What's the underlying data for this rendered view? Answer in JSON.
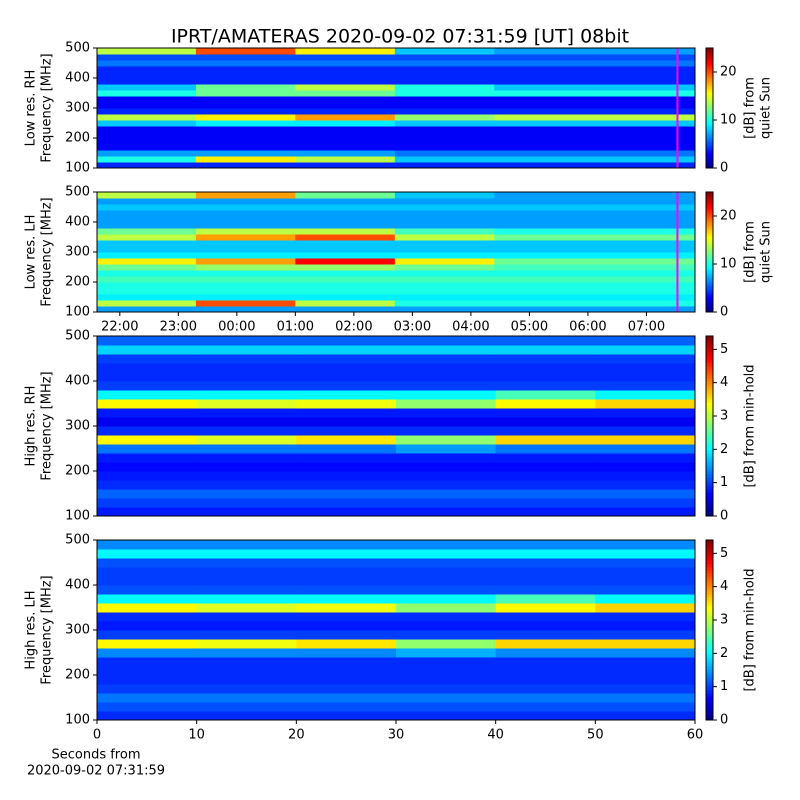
{
  "chart_data": [
    {
      "type": "heatmap",
      "title": "IPRT/AMATERAS 2020-09-02 07:31:59 [UT]   08bit",
      "ylabel": [
        "Low res. RH",
        "Frequency [MHz]"
      ],
      "ylim": [
        100,
        500
      ],
      "yticks": [
        100,
        200,
        300,
        400,
        500
      ],
      "xlim": [
        21.61,
        31.83
      ],
      "colormap": "jet",
      "clim": [
        0,
        25
      ],
      "cticks": [
        0,
        10,
        20
      ],
      "clabel": [
        "[dB] from",
        "quiet Sun"
      ],
      "marker": {
        "x": 31.53,
        "color": "#ff00ff"
      },
      "x": [
        21.61,
        23.3,
        25,
        26.7,
        28.4,
        30.1,
        31.83
      ],
      "y": [
        100,
        120,
        140,
        160,
        180,
        200,
        220,
        240,
        260,
        280,
        300,
        320,
        340,
        360,
        380,
        400,
        420,
        440,
        460,
        480,
        500
      ],
      "z": [
        [
          4,
          4,
          4,
          4,
          4,
          4
        ],
        [
          10,
          16,
          14,
          8,
          8,
          8
        ],
        [
          7,
          7,
          7,
          6,
          6,
          6
        ],
        [
          3,
          3,
          3,
          3,
          3,
          3
        ],
        [
          3,
          3,
          3,
          3,
          3,
          3
        ],
        [
          3,
          3,
          3,
          3,
          3,
          3
        ],
        [
          3,
          3,
          3,
          3,
          3,
          3
        ],
        [
          8,
          9,
          9,
          8,
          8,
          8
        ],
        [
          14,
          16,
          18,
          13,
          14,
          14
        ],
        [
          4,
          4,
          4,
          4,
          4,
          4
        ],
        [
          3,
          3,
          3,
          3,
          3,
          3
        ],
        [
          3,
          3,
          3,
          3,
          3,
          3
        ],
        [
          10,
          12,
          12,
          10,
          10,
          10
        ],
        [
          8,
          12,
          14,
          10,
          8,
          8
        ],
        [
          4,
          4,
          4,
          4,
          4,
          4
        ],
        [
          4,
          4,
          4,
          4,
          4,
          4
        ],
        [
          4,
          4,
          4,
          4,
          4,
          4
        ],
        [
          6,
          6,
          6,
          6,
          6,
          6
        ],
        [
          5,
          5,
          5,
          5,
          5,
          5
        ],
        [
          14,
          20,
          16,
          8,
          7,
          7
        ]
      ]
    },
    {
      "type": "heatmap",
      "ylabel": [
        "Low res. LH",
        "Frequency [MHz]"
      ],
      "ylim": [
        100,
        500
      ],
      "yticks": [
        100,
        200,
        300,
        400,
        500
      ],
      "xlim": [
        21.61,
        31.83
      ],
      "xticks": [
        {
          "value": 22,
          "label": "22:00"
        },
        {
          "value": 23,
          "label": "23:00"
        },
        {
          "value": 24,
          "label": "00:00"
        },
        {
          "value": 25,
          "label": "01:00"
        },
        {
          "value": 26,
          "label": "02:00"
        },
        {
          "value": 27,
          "label": "03:00"
        },
        {
          "value": 28,
          "label": "04:00"
        },
        {
          "value": 29,
          "label": "05:00"
        },
        {
          "value": 30,
          "label": "06:00"
        },
        {
          "value": 31,
          "label": "07:00"
        }
      ],
      "colormap": "jet",
      "clim": [
        0,
        25
      ],
      "cticks": [
        0,
        10,
        20
      ],
      "clabel": [
        "[dB] from",
        "quiet Sun"
      ],
      "marker": {
        "x": 31.53,
        "color": "#ff00ff"
      },
      "x": [
        21.61,
        23.3,
        25,
        26.7,
        28.4,
        30.1,
        31.83
      ],
      "y": [
        100,
        120,
        140,
        160,
        180,
        200,
        220,
        240,
        260,
        280,
        300,
        320,
        340,
        360,
        380,
        400,
        420,
        440,
        460,
        480,
        500
      ],
      "z": [
        [
          7,
          7,
          7,
          7,
          7,
          7
        ],
        [
          14,
          20,
          14,
          10,
          10,
          10
        ],
        [
          9,
          9,
          9,
          9,
          9,
          9
        ],
        [
          10,
          10,
          10,
          10,
          10,
          10
        ],
        [
          10,
          10,
          10,
          10,
          10,
          10
        ],
        [
          11,
          11,
          11,
          11,
          11,
          11
        ],
        [
          10,
          10,
          10,
          10,
          10,
          10
        ],
        [
          12,
          13,
          13,
          12,
          11,
          11
        ],
        [
          16,
          18,
          22,
          16,
          12,
          12
        ],
        [
          9,
          9,
          9,
          9,
          9,
          9
        ],
        [
          8,
          8,
          8,
          8,
          8,
          8
        ],
        [
          8,
          8,
          8,
          8,
          8,
          8
        ],
        [
          14,
          18,
          20,
          14,
          12,
          12
        ],
        [
          12,
          14,
          14,
          11,
          10,
          10
        ],
        [
          7,
          7,
          7,
          7,
          7,
          7
        ],
        [
          7,
          7,
          7,
          7,
          7,
          7
        ],
        [
          7,
          7,
          7,
          7,
          7,
          7
        ],
        [
          8,
          8,
          8,
          8,
          8,
          8
        ],
        [
          7,
          7,
          7,
          7,
          7,
          7
        ],
        [
          14,
          18,
          12,
          8,
          7,
          7
        ]
      ]
    },
    {
      "type": "heatmap",
      "ylabel": [
        "High res. RH",
        "Frequency [MHz]"
      ],
      "ylim": [
        100,
        500
      ],
      "yticks": [
        100,
        200,
        300,
        400,
        500
      ],
      "xlim": [
        0,
        60
      ],
      "colormap": "jet",
      "clim": [
        0,
        5.4
      ],
      "cticks": [
        0,
        1,
        2,
        3,
        4,
        5
      ],
      "clabel": [
        "[dB] from min-hold"
      ],
      "x": [
        0,
        10,
        20,
        30,
        40,
        50,
        60
      ],
      "y": [
        100,
        120,
        140,
        160,
        180,
        200,
        220,
        240,
        260,
        280,
        300,
        320,
        340,
        360,
        380,
        400,
        420,
        440,
        460,
        480,
        500
      ],
      "z": [
        [
          0.8,
          0.8,
          0.8,
          0.8,
          0.8,
          0.8
        ],
        [
          1,
          1,
          1,
          1,
          1,
          1
        ],
        [
          1.2,
          1.2,
          1.2,
          1.2,
          1.2,
          1.2
        ],
        [
          0.9,
          0.9,
          0.9,
          0.9,
          0.9,
          0.9
        ],
        [
          0.8,
          0.8,
          0.8,
          0.8,
          0.8,
          0.8
        ],
        [
          0.7,
          0.7,
          0.7,
          0.7,
          0.7,
          0.7
        ],
        [
          0.8,
          0.8,
          0.8,
          0.8,
          0.8,
          0.8
        ],
        [
          1.3,
          1.3,
          1.3,
          1.5,
          1.3,
          1.3
        ],
        [
          3.4,
          3.2,
          3.5,
          2.8,
          3.6,
          3.6
        ],
        [
          0.9,
          0.9,
          0.9,
          0.9,
          0.9,
          0.9
        ],
        [
          0.6,
          0.6,
          0.6,
          0.6,
          0.6,
          0.6
        ],
        [
          0.8,
          0.8,
          0.8,
          0.8,
          0.8,
          0.8
        ],
        [
          3.4,
          3.2,
          3.3,
          2.8,
          3.4,
          3.6
        ],
        [
          2,
          2,
          2,
          2,
          2.4,
          2
        ],
        [
          1,
          1,
          1,
          1,
          1,
          1
        ],
        [
          0.9,
          0.9,
          0.9,
          0.9,
          0.9,
          0.9
        ],
        [
          0.9,
          0.9,
          0.9,
          0.9,
          0.9,
          0.9
        ],
        [
          1,
          1,
          1,
          1,
          1,
          1
        ],
        [
          1.8,
          1.8,
          1.8,
          1.8,
          1.8,
          1.8
        ],
        [
          1.2,
          1.2,
          1.2,
          1.2,
          1.2,
          1.2
        ]
      ]
    },
    {
      "type": "heatmap",
      "ylabel": [
        "High res. LH",
        "Frequency [MHz]"
      ],
      "ylim": [
        100,
        500
      ],
      "yticks": [
        100,
        200,
        300,
        400,
        500
      ],
      "xlim": [
        0,
        60
      ],
      "xticks": [
        0,
        10,
        20,
        30,
        40,
        50,
        60
      ],
      "xlabel": [
        "Seconds from",
        "2020-09-02 07:31:59"
      ],
      "colormap": "jet",
      "clim": [
        0,
        5.4
      ],
      "cticks": [
        0,
        1,
        2,
        3,
        4,
        5
      ],
      "clabel": [
        "[dB] from min-hold"
      ],
      "x": [
        0,
        10,
        20,
        30,
        40,
        50,
        60
      ],
      "y": [
        100,
        120,
        140,
        160,
        180,
        200,
        220,
        240,
        260,
        280,
        300,
        320,
        340,
        360,
        380,
        400,
        420,
        440,
        460,
        480,
        500
      ],
      "z": [
        [
          0.9,
          0.9,
          0.9,
          0.9,
          0.9,
          0.9
        ],
        [
          1.1,
          1.1,
          1.1,
          1.1,
          1.1,
          1.1
        ],
        [
          1.3,
          1.3,
          1.3,
          1.3,
          1.3,
          1.3
        ],
        [
          1,
          1,
          1,
          1,
          1,
          1
        ],
        [
          0.9,
          0.9,
          0.9,
          0.9,
          0.9,
          0.9
        ],
        [
          0.9,
          0.9,
          0.9,
          0.9,
          0.9,
          0.9
        ],
        [
          0.9,
          0.9,
          0.9,
          0.9,
          0.9,
          0.9
        ],
        [
          1.4,
          1.4,
          1.4,
          1.6,
          1.4,
          1.4
        ],
        [
          3.4,
          3.3,
          3.5,
          2.8,
          3.6,
          3.6
        ],
        [
          1,
          1,
          1,
          1,
          1,
          1
        ],
        [
          0.8,
          0.8,
          0.8,
          0.8,
          0.8,
          0.8
        ],
        [
          0.9,
          0.9,
          0.9,
          0.9,
          0.9,
          0.9
        ],
        [
          3.4,
          3.2,
          3.3,
          2.8,
          3.4,
          3.6
        ],
        [
          2,
          2,
          2,
          2,
          2.4,
          2
        ],
        [
          1.1,
          1.1,
          1.1,
          1.1,
          1.1,
          1.1
        ],
        [
          1,
          1,
          1,
          1,
          1,
          1
        ],
        [
          1,
          1,
          1,
          1,
          1,
          1
        ],
        [
          1.1,
          1.1,
          1.1,
          1.1,
          1.1,
          1.1
        ],
        [
          2,
          2,
          2,
          2,
          2,
          2
        ],
        [
          1.4,
          1.4,
          1.4,
          1.4,
          1.4,
          1.4
        ]
      ]
    }
  ]
}
